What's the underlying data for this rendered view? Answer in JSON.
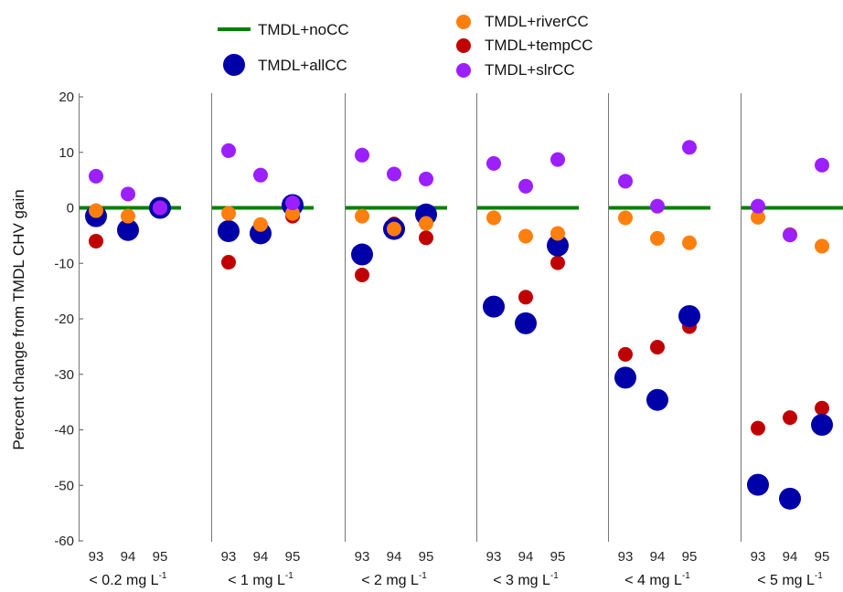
{
  "chart_data": {
    "type": "scatter",
    "ylabel": "Percent change from TMDL CHV gain",
    "ylim": [
      -60,
      20
    ],
    "yticks": [
      20,
      10,
      0,
      -10,
      -20,
      -30,
      -40,
      -50,
      -60
    ],
    "xticks": [
      "93",
      "94",
      "95"
    ],
    "legend": [
      {
        "name": "TMDL+noCC",
        "marker": "line",
        "color": "#008000"
      },
      {
        "name": "TMDL+allCC",
        "marker": "large-dot",
        "color": "#0000a8"
      },
      {
        "name": "TMDL+riverCC",
        "marker": "dot",
        "color": "#ff7f0e"
      },
      {
        "name": "TMDL+tempCC",
        "marker": "dot",
        "color": "#c00000"
      },
      {
        "name": "TMDL+slrCC",
        "marker": "dot",
        "color": "#9b1fff"
      }
    ],
    "panels": [
      {
        "label": "< 0.2 mg L",
        "sup": "-1",
        "allCC": [
          -1.5,
          -4,
          0
        ],
        "riverCC": [
          -0.5,
          -1.5,
          0
        ],
        "tempCC": [
          -6,
          -4.5,
          0
        ],
        "slrCC": [
          5.7,
          2.5,
          0
        ]
      },
      {
        "label": "< 1 mg L",
        "sup": "-1",
        "allCC": [
          -4.2,
          -4.6,
          0.5
        ],
        "riverCC": [
          -1,
          -3,
          -1
        ],
        "tempCC": [
          -9.8,
          -5,
          -1.5
        ],
        "slrCC": [
          10.3,
          5.9,
          0.9
        ]
      },
      {
        "label": "< 2 mg L",
        "sup": "-1",
        "allCC": [
          -8.4,
          -3.8,
          -1.2
        ],
        "riverCC": [
          -1.5,
          -3.8,
          -2.8
        ],
        "tempCC": [
          -12.1,
          -2.9,
          -5.4
        ],
        "slrCC": [
          9.5,
          6.1,
          5.2
        ]
      },
      {
        "label": "< 3 mg L",
        "sup": "-1",
        "allCC": [
          -17.8,
          -20.8,
          -6.8
        ],
        "riverCC": [
          -1.8,
          -5.1,
          -4.6
        ],
        "tempCC": [
          -18.4,
          -16.1,
          -9.9
        ],
        "slrCC": [
          8.0,
          3.9,
          8.7
        ]
      },
      {
        "label": "< 4 mg L",
        "sup": "-1",
        "allCC": [
          -30.6,
          -34.6,
          -19.5
        ],
        "riverCC": [
          -1.8,
          -5.5,
          -6.3
        ],
        "tempCC": [
          -26.4,
          -25.1,
          -21.4
        ],
        "slrCC": [
          4.8,
          0.3,
          10.9
        ]
      },
      {
        "label": "< 5 mg L",
        "sup": "-1",
        "allCC": [
          -49.9,
          -52.4,
          -39.1
        ],
        "riverCC": [
          -1.7,
          -4.8,
          -6.9
        ],
        "tempCC": [
          -39.7,
          -37.8,
          -36.1
        ],
        "slrCC": [
          0.3,
          -4.9,
          7.7
        ]
      }
    ],
    "noCC_value": 0,
    "grid": false,
    "legend_position": "top"
  }
}
